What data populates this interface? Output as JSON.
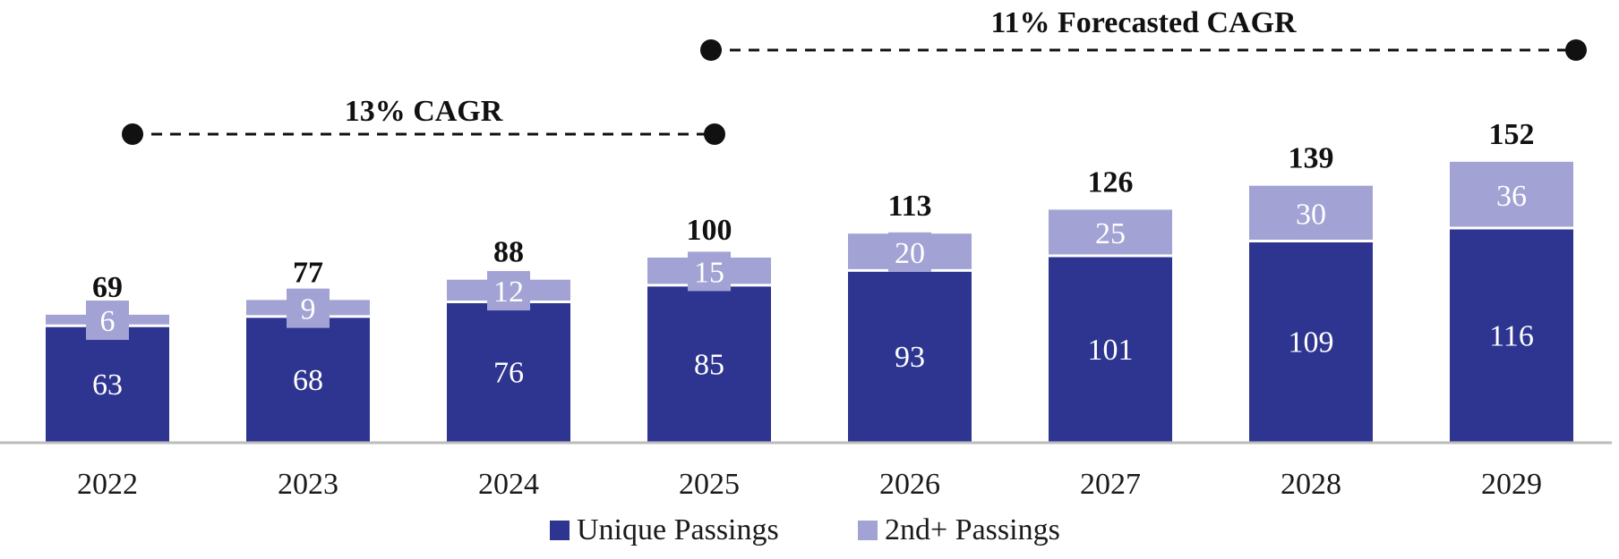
{
  "chart_data": {
    "type": "bar",
    "stacked": true,
    "categories": [
      "2022",
      "2023",
      "2024",
      "2025",
      "2026",
      "2027",
      "2028",
      "2029"
    ],
    "series": [
      {
        "name": "Unique Passings",
        "color": "#2e3590",
        "values": [
          63,
          68,
          76,
          85,
          93,
          101,
          109,
          116
        ]
      },
      {
        "name": "2nd+ Passings",
        "color": "#a2a2d4",
        "values": [
          6,
          9,
          12,
          15,
          20,
          25,
          30,
          36
        ]
      }
    ],
    "totals": [
      69,
      77,
      88,
      100,
      113,
      126,
      139,
      152
    ],
    "ylim": [
      0,
      160
    ],
    "grid": false,
    "legend": {
      "position": "bottom"
    },
    "annotations": [
      {
        "text": "13% CAGR",
        "from": "2022",
        "to": "2025"
      },
      {
        "text": "11% Forecasted CAGR",
        "from": "2025",
        "to": "2029"
      }
    ],
    "title": "",
    "xlabel": "",
    "ylabel": ""
  }
}
